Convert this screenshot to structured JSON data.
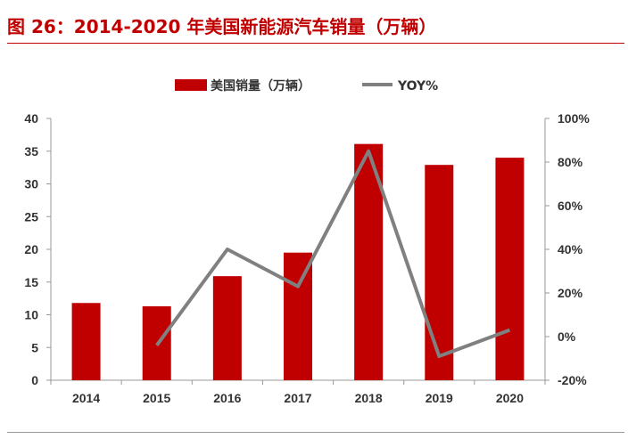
{
  "figure_title": "图 26：2014-2020 年美国新能源汽车销量（万辆）",
  "colors": {
    "bar": "#c00000",
    "line": "#808080",
    "title": "#c00000",
    "axis": "#999999",
    "text": "#333333"
  },
  "chart_data": {
    "type": "bar",
    "categories": [
      "2014",
      "2015",
      "2016",
      "2017",
      "2018",
      "2019",
      "2020"
    ],
    "series": [
      {
        "name": "美国销量（万辆）",
        "type": "bar",
        "axis": "left",
        "values": [
          11.8,
          11.3,
          15.9,
          19.5,
          36.1,
          32.9,
          34.0
        ]
      },
      {
        "name": "YOY%",
        "type": "line",
        "axis": "right",
        "values": [
          null,
          -4,
          40,
          23,
          85,
          -9,
          3
        ]
      }
    ],
    "y_left": {
      "ylim": [
        0,
        40
      ],
      "ticks": [
        "0",
        "5",
        "10",
        "15",
        "20",
        "25",
        "30",
        "35",
        "40"
      ]
    },
    "y_right": {
      "ylim": [
        -20,
        100
      ],
      "ticks": [
        "-20%",
        "0%",
        "20%",
        "40%",
        "60%",
        "80%",
        "100%"
      ]
    },
    "legend_position": "top-center",
    "grid": false
  }
}
